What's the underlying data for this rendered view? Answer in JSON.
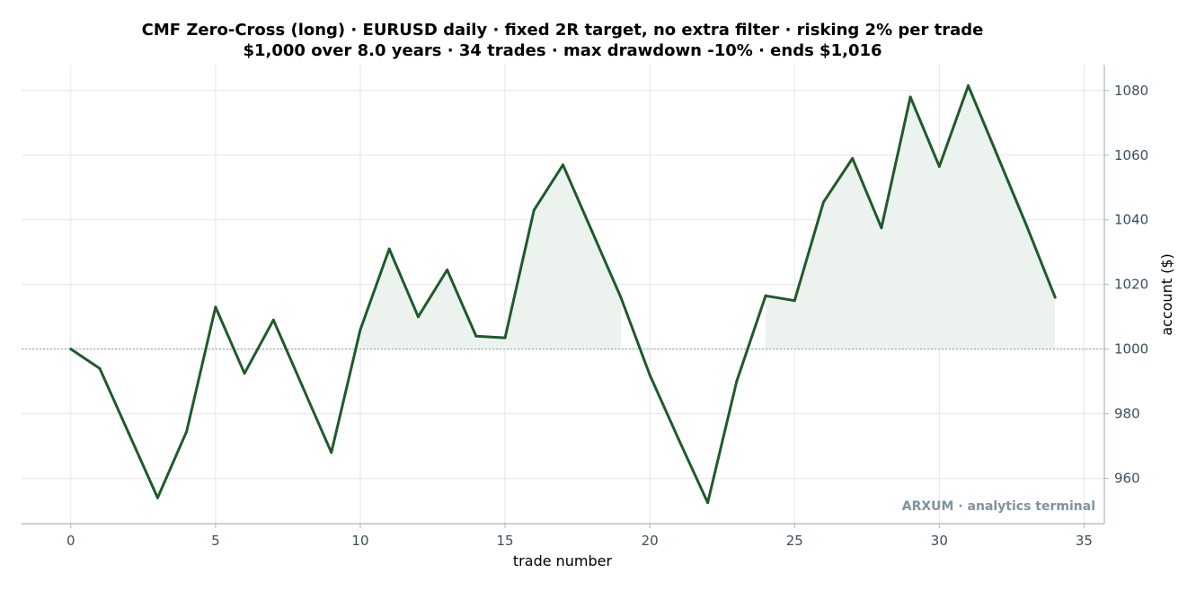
{
  "chart_data": {
    "type": "line",
    "title": "CMF Zero-Cross (long) · EURUSD daily · fixed 2R target, no extra filter · risking 2% per trade",
    "subtitle": "$1,000 over 8.0 years · 34 trades · max drawdown -10% · ends $1,016",
    "xlabel": "trade number",
    "ylabel": "account ($)",
    "xlim": [
      -1.7,
      35.7
    ],
    "ylim": [
      946,
      1088
    ],
    "xticks": [
      0,
      5,
      10,
      15,
      20,
      25,
      30,
      35
    ],
    "yticks": [
      960,
      980,
      1000,
      1020,
      1040,
      1060,
      1080
    ],
    "xtick_labels": [
      "0",
      "5",
      "10",
      "15",
      "20",
      "25",
      "30",
      "35"
    ],
    "ytick_labels": [
      "960",
      "980",
      "1000",
      "1020",
      "1040",
      "1060",
      "1080"
    ],
    "y_axis_side": "right",
    "grid": true,
    "baseline": 1000,
    "fill_above_baseline": true,
    "x": [
      0,
      1,
      2,
      3,
      4,
      5,
      6,
      7,
      8,
      9,
      10,
      11,
      12,
      13,
      14,
      15,
      16,
      17,
      18,
      19,
      20,
      21,
      22,
      23,
      24,
      25,
      26,
      27,
      28,
      29,
      30,
      31,
      32,
      33,
      34
    ],
    "y": [
      1000,
      994,
      974,
      954,
      974.5,
      1013,
      992.5,
      1009,
      988.5,
      968,
      1006,
      1031,
      1010,
      1024.5,
      1004,
      1003.5,
      1043,
      1057,
      1036.5,
      1016,
      992,
      972,
      952.5,
      990,
      1016.5,
      1015,
      1045.5,
      1059,
      1037.5,
      1078,
      1056.5,
      1081.5,
      1060,
      1038.5,
      1016
    ],
    "watermark": "ARXUM · analytics terminal",
    "colors": {
      "line": "#1e5b2a",
      "fill": "#ecf2ee",
      "grid": "#e6e6e6",
      "axis": "#a8b8bf",
      "baseline": "#9aa6ad",
      "tick_text": "#3d4f5c",
      "watermark": "#7f939e"
    }
  }
}
